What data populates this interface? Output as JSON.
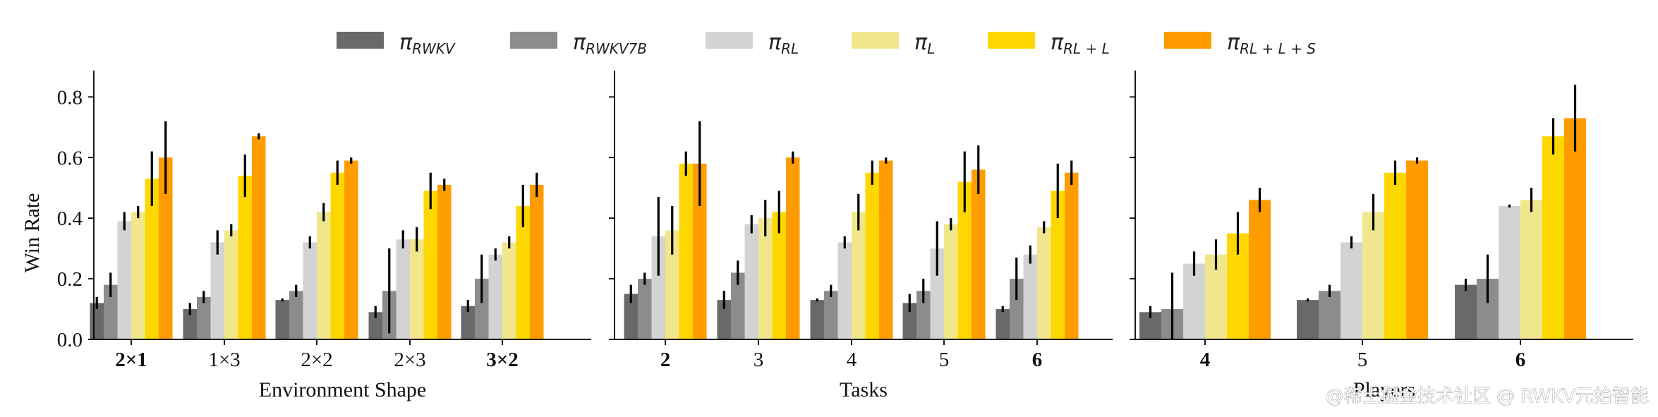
{
  "legend": [
    {
      "sym": "π",
      "sub": "RWKV",
      "color": "#696969"
    },
    {
      "sym": "π",
      "sub": "RWKV7B",
      "color": "#8c8c8c"
    },
    {
      "sym": "π",
      "sub": "RL",
      "color": "#d3d3d3"
    },
    {
      "sym": "π",
      "sub": "L",
      "color": "#f0e68c"
    },
    {
      "sym": "π",
      "sub": "RL + L",
      "color": "#ffd700"
    },
    {
      "sym": "π",
      "sub": "RL + L + S",
      "color": "#ff9c00"
    }
  ],
  "watermark": "@稀土掘金技术社区 @ RWKV元始智能",
  "chart_data": [
    {
      "type": "bar",
      "xlabel": "Environment Shape",
      "ylabel": "Win Rate",
      "ylim": [
        0,
        0.88
      ],
      "yticks": [
        "0.0",
        "0.2",
        "0.4",
        "0.6",
        "0.8"
      ],
      "categories": [
        "2×1",
        "1×3",
        "2×2",
        "2×3",
        "3×2"
      ],
      "bold_categories": [
        "2×1",
        "3×2"
      ],
      "series": [
        {
          "name": "π_RWKV",
          "values": [
            0.12,
            0.1,
            0.13,
            0.09,
            0.11
          ],
          "err": [
            0.02,
            0.02,
            0.005,
            0.02,
            0.02
          ]
        },
        {
          "name": "π_RWKV7B",
          "values": [
            0.18,
            0.14,
            0.16,
            0.16,
            0.2
          ],
          "err": [
            0.04,
            0.02,
            0.02,
            0.14,
            0.08
          ]
        },
        {
          "name": "π_RL",
          "values": [
            0.39,
            0.32,
            0.32,
            0.33,
            0.28
          ],
          "err": [
            0.03,
            0.04,
            0.02,
            0.03,
            0.02
          ]
        },
        {
          "name": "π_L",
          "values": [
            0.42,
            0.36,
            0.42,
            0.33,
            0.32
          ],
          "err": [
            0.02,
            0.02,
            0.03,
            0.04,
            0.02
          ]
        },
        {
          "name": "π_RL+L",
          "values": [
            0.53,
            0.54,
            0.55,
            0.49,
            0.44
          ],
          "err": [
            0.09,
            0.07,
            0.04,
            0.06,
            0.07
          ]
        },
        {
          "name": "π_RL+L+S",
          "values": [
            0.6,
            0.67,
            0.59,
            0.51,
            0.51
          ],
          "err": [
            0.12,
            0.01,
            0.01,
            0.02,
            0.04
          ]
        }
      ]
    },
    {
      "type": "bar",
      "xlabel": "Tasks",
      "ylim": [
        0,
        0.88
      ],
      "categories": [
        "2",
        "3",
        "4",
        "5",
        "6"
      ],
      "bold_categories": [
        "2",
        "6"
      ],
      "series": [
        {
          "name": "π_RWKV",
          "values": [
            0.15,
            0.13,
            0.13,
            0.12,
            0.1
          ],
          "err": [
            0.03,
            0.03,
            0.005,
            0.03,
            0.01
          ]
        },
        {
          "name": "π_RWKV7B",
          "values": [
            0.2,
            0.22,
            0.16,
            0.16,
            0.2
          ],
          "err": [
            0.02,
            0.04,
            0.02,
            0.04,
            0.07
          ]
        },
        {
          "name": "π_RL",
          "values": [
            0.34,
            0.38,
            0.32,
            0.3,
            0.28
          ],
          "err": [
            0.13,
            0.03,
            0.02,
            0.09,
            0.03
          ]
        },
        {
          "name": "π_L",
          "values": [
            0.36,
            0.4,
            0.42,
            0.38,
            0.37
          ],
          "err": [
            0.08,
            0.06,
            0.06,
            0.02,
            0.02
          ]
        },
        {
          "name": "π_RL+L",
          "values": [
            0.58,
            0.42,
            0.55,
            0.52,
            0.49
          ],
          "err": [
            0.04,
            0.07,
            0.04,
            0.1,
            0.09
          ]
        },
        {
          "name": "π_RL+L+S",
          "values": [
            0.58,
            0.6,
            0.59,
            0.56,
            0.55
          ],
          "err": [
            0.14,
            0.02,
            0.01,
            0.08,
            0.04
          ]
        }
      ]
    },
    {
      "type": "bar",
      "xlabel": "Players",
      "ylim": [
        0,
        0.88
      ],
      "categories": [
        "4",
        "5",
        "6"
      ],
      "bold_categories": [
        "4",
        "6"
      ],
      "series": [
        {
          "name": "π_RWKV",
          "values": [
            0.09,
            0.13,
            0.18
          ],
          "err": [
            0.02,
            0.005,
            0.02
          ]
        },
        {
          "name": "π_RWKV7B",
          "values": [
            0.1,
            0.16,
            0.2
          ],
          "err": [
            0.12,
            0.02,
            0.08
          ]
        },
        {
          "name": "π_RL",
          "values": [
            0.25,
            0.32,
            0.44
          ],
          "err": [
            0.04,
            0.02,
            0.005
          ]
        },
        {
          "name": "π_L",
          "values": [
            0.28,
            0.42,
            0.46
          ],
          "err": [
            0.05,
            0.06,
            0.04
          ]
        },
        {
          "name": "π_RL+L",
          "values": [
            0.35,
            0.55,
            0.67
          ],
          "err": [
            0.07,
            0.04,
            0.06
          ]
        },
        {
          "name": "π_RL+L+S",
          "values": [
            0.46,
            0.59,
            0.73
          ],
          "err": [
            0.04,
            0.01,
            0.11
          ]
        }
      ]
    }
  ]
}
